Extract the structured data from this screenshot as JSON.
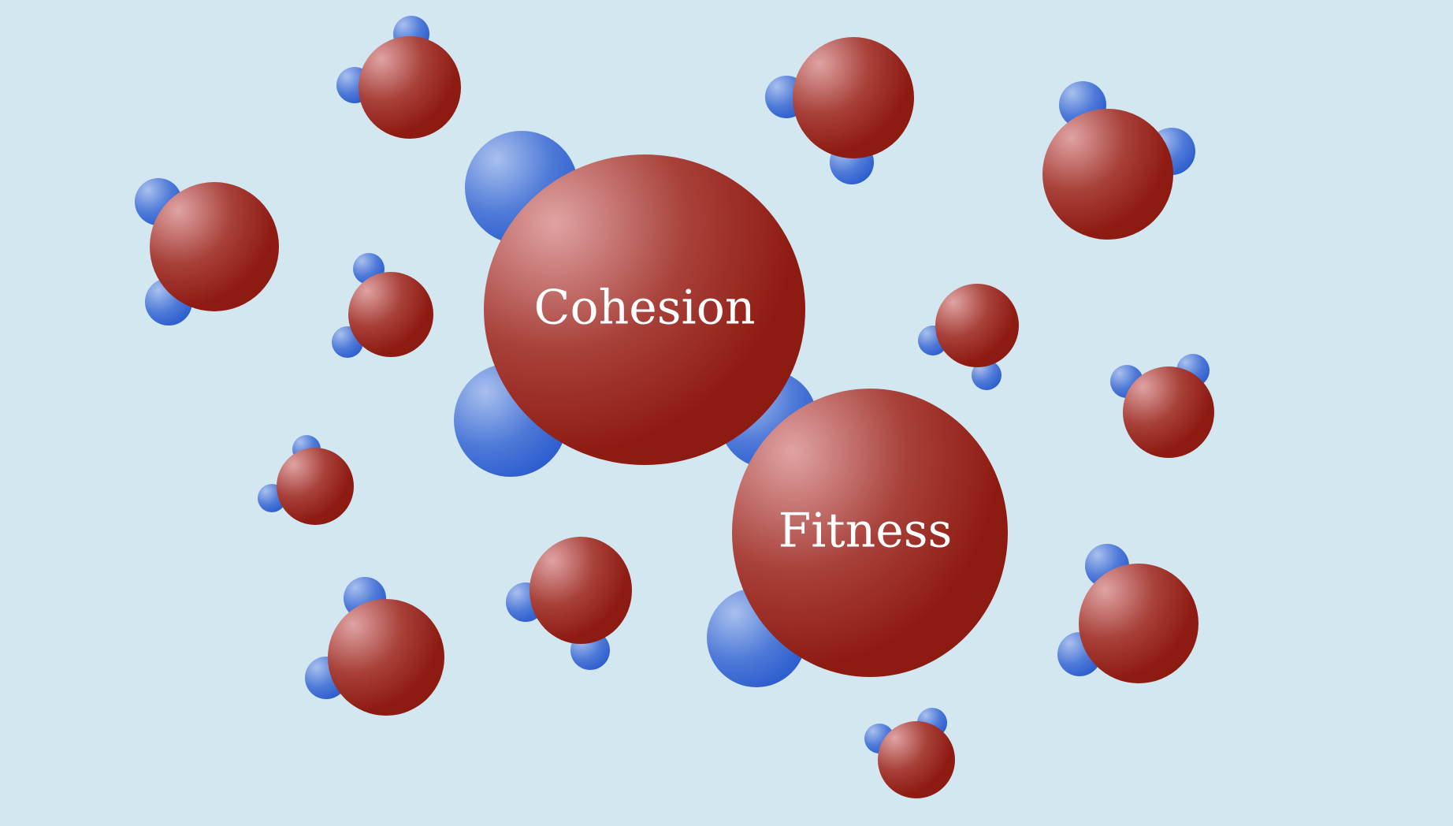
{
  "diagram": {
    "labels": {
      "cohesion": "Cohesion",
      "fitness": "Fitness"
    },
    "colors": {
      "background": "#d3e7f0",
      "oxygen_dark": "#8e1b12",
      "oxygen_light": "#dfa3a3",
      "hydrogen_dark": "#2f5fcf",
      "hydrogen_light": "#a9c0ee",
      "label": "#ffffff"
    }
  }
}
